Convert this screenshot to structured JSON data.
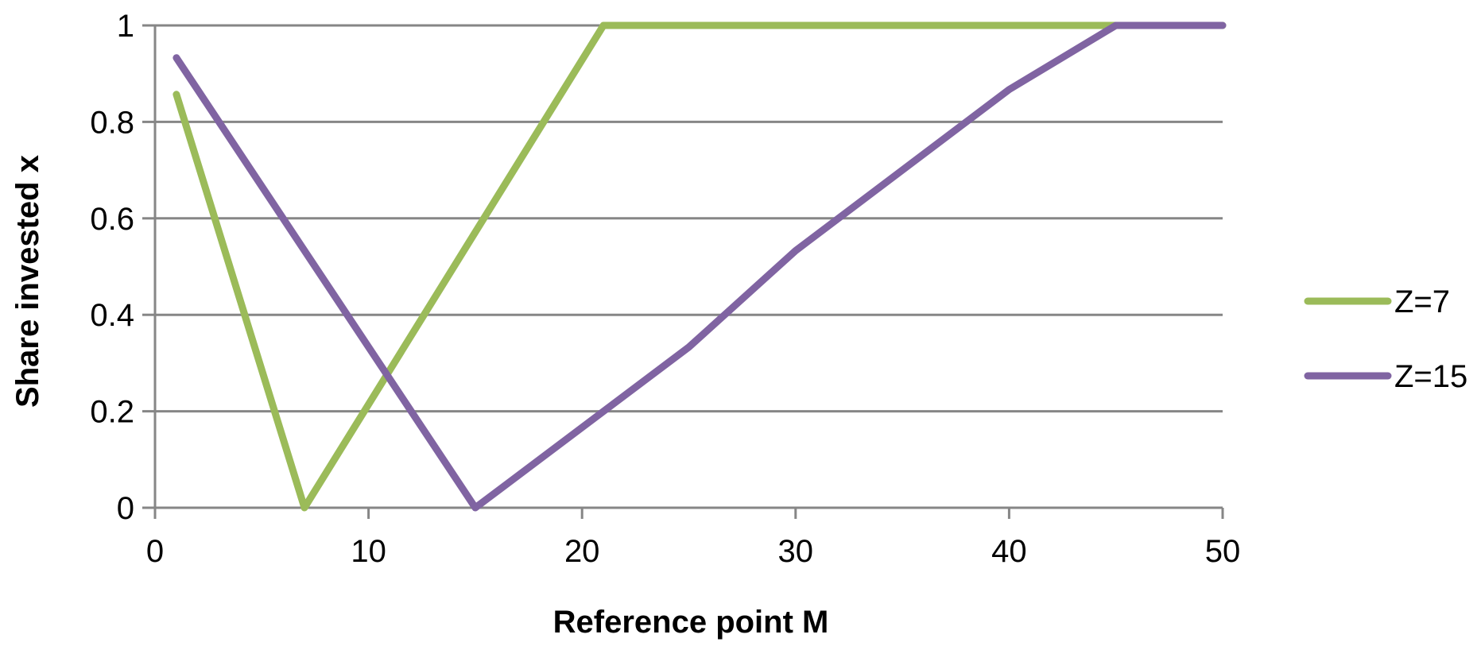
{
  "chart_data": {
    "type": "line",
    "xlabel": "Reference point M",
    "ylabel": "Share invested x",
    "xlim": [
      0,
      50
    ],
    "ylim": [
      0,
      1
    ],
    "xticks": [
      "0",
      "10",
      "20",
      "30",
      "40",
      "50"
    ],
    "yticks": [
      "0",
      "0.2",
      "0.4",
      "0.6",
      "0.8",
      "1"
    ],
    "grid": "horizontal",
    "legend_position": "right",
    "series": [
      {
        "name": "Z=7",
        "color": "#9BBB59",
        "points": [
          [
            1,
            0.857
          ],
          [
            7,
            0.0
          ],
          [
            21,
            1.0
          ],
          [
            50,
            1.0
          ]
        ]
      },
      {
        "name": "Z=15",
        "color": "#8064A2",
        "points": [
          [
            1,
            0.933
          ],
          [
            15,
            0.0
          ],
          [
            25,
            0.333
          ],
          [
            30,
            0.533
          ],
          [
            40,
            0.867
          ],
          [
            45,
            1.0
          ],
          [
            50,
            1.0
          ]
        ]
      }
    ]
  }
}
